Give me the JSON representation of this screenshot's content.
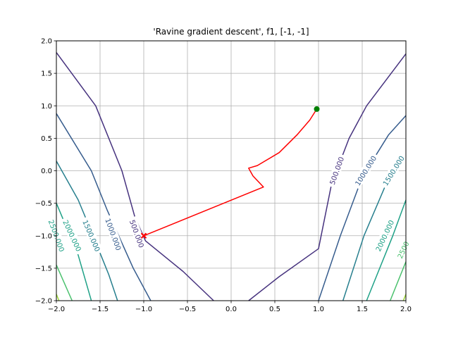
{
  "chart_data": {
    "type": "line",
    "title": "'Ravine gradient descent', f1, [-1, -1]",
    "xlim": [
      -2.0,
      2.0
    ],
    "ylim": [
      -2.0,
      2.0
    ],
    "grid": true,
    "x_ticks": [
      -2.0,
      -1.5,
      -1.0,
      -0.5,
      0.0,
      0.5,
      1.0,
      1.5,
      2.0
    ],
    "x_tick_labels": [
      "−2.0",
      "−1.5",
      "−1.0",
      "−0.5",
      "0.0",
      "0.5",
      "1.0",
      "1.5",
      "2.0"
    ],
    "y_ticks": [
      -2.0,
      -1.5,
      -1.0,
      -0.5,
      0.0,
      0.5,
      1.0,
      1.5,
      2.0
    ],
    "y_tick_labels": [
      "−2.0",
      "−1.5",
      "−1.0",
      "−0.5",
      "0.0",
      "0.5",
      "1.0",
      "1.5",
      "2.0"
    ],
    "contours": [
      {
        "level": 500,
        "label": "500.000",
        "color": "#46327e",
        "segments": [
          [
            [
              -2.0,
              1.82
            ],
            [
              -1.55,
              1.0
            ],
            [
              -1.25,
              0.0
            ],
            [
              -1.1,
              -0.72
            ],
            [
              -0.98,
              -1.08
            ],
            [
              -0.55,
              -1.55
            ],
            [
              -0.2,
              -2.0
            ]
          ],
          [
            [
              0.2,
              -2.0
            ],
            [
              0.55,
              -1.63
            ],
            [
              1.0,
              -1.2
            ],
            [
              1.15,
              -0.2
            ],
            [
              1.35,
              0.5
            ],
            [
              1.55,
              1.0
            ],
            [
              2.0,
              1.8
            ]
          ]
        ],
        "labels": [
          {
            "x": -1.08,
            "y": -0.97,
            "angle": 70
          },
          {
            "x": 1.21,
            "y": 0.0,
            "angle": -70
          }
        ]
      },
      {
        "level": 1000,
        "label": "1000.000",
        "color": "#365c8d",
        "segments": [
          [
            [
              -2.0,
              0.88
            ],
            [
              -1.6,
              0.0
            ],
            [
              -1.42,
              -0.6
            ],
            [
              -1.12,
              -1.5
            ],
            [
              -0.92,
              -2.0
            ]
          ],
          [
            [
              1.0,
              -2.0
            ],
            [
              1.25,
              -1.0
            ],
            [
              1.5,
              -0.1
            ],
            [
              1.8,
              0.55
            ],
            [
              2.0,
              0.85
            ]
          ]
        ],
        "labels": [
          {
            "x": -1.35,
            "y": -0.98,
            "angle": 70
          },
          {
            "x": 1.54,
            "y": 0.0,
            "angle": -58
          }
        ]
      },
      {
        "level": 1500,
        "label": "1500.000",
        "color": "#277f8e",
        "segments": [
          [
            [
              -2.0,
              0.15
            ],
            [
              -1.75,
              -0.45
            ],
            [
              -1.58,
              -1.0
            ],
            [
              -1.4,
              -1.6
            ],
            [
              -1.3,
              -2.0
            ]
          ],
          [
            [
              1.28,
              -2.0
            ],
            [
              1.52,
              -1.0
            ],
            [
              1.8,
              -0.12
            ],
            [
              2.0,
              0.22
            ]
          ]
        ],
        "labels": [
          {
            "x": -1.6,
            "y": -1.0,
            "angle": 67
          },
          {
            "x": 1.86,
            "y": 0.0,
            "angle": -58
          }
        ]
      },
      {
        "level": 2000,
        "label": "2000.000",
        "color": "#1fa187",
        "segments": [
          [
            [
              -2.0,
              -0.5
            ],
            [
              -1.75,
              -1.3
            ],
            [
              -1.6,
              -2.0
            ]
          ],
          [
            [
              1.55,
              -2.0
            ],
            [
              1.85,
              -1.0
            ],
            [
              2.0,
              -0.45
            ]
          ]
        ],
        "labels": [
          {
            "x": -1.82,
            "y": -1.0,
            "angle": 65
          },
          {
            "x": 1.76,
            "y": -1.0,
            "angle": -65
          }
        ]
      },
      {
        "level": 2500,
        "label": "2500",
        "color": "#4ac16d",
        "segments": [
          [
            [
              -2.0,
              -1.45
            ],
            [
              -1.82,
              -2.0
            ]
          ],
          [
            [
              1.82,
              -2.0
            ],
            [
              2.0,
              -1.4
            ]
          ]
        ],
        "labels": [
          {
            "x": 1.97,
            "y": -1.22,
            "angle": -65
          }
        ]
      },
      {
        "level": 2500,
        "label": "2500.000",
        "color": "#1fa187",
        "segments": [],
        "labels": [
          {
            "x": -2.0,
            "y": -1.0,
            "angle": 70,
            "text": "2500.000"
          }
        ]
      },
      {
        "level": 3000,
        "label": "",
        "color": "#a0da39",
        "segments": [
          [
            [
              -2.0,
              -1.9
            ],
            [
              -1.97,
              -2.0
            ]
          ],
          [
            [
              1.97,
              -2.0
            ],
            [
              2.0,
              -1.9
            ]
          ]
        ],
        "labels": []
      }
    ],
    "path": {
      "color": "#ff0000",
      "points": [
        [
          -1.0,
          -1.0
        ],
        [
          0.37,
          -0.25
        ],
        [
          0.25,
          -0.08
        ],
        [
          0.2,
          0.04
        ],
        [
          0.3,
          0.08
        ],
        [
          0.55,
          0.28
        ],
        [
          0.76,
          0.56
        ],
        [
          0.9,
          0.78
        ],
        [
          0.98,
          0.95
        ]
      ]
    },
    "start_point": {
      "x": -1.0,
      "y": -1.0,
      "color": "#ff0000"
    },
    "end_point": {
      "x": 0.98,
      "y": 0.95,
      "color": "#008000"
    }
  }
}
